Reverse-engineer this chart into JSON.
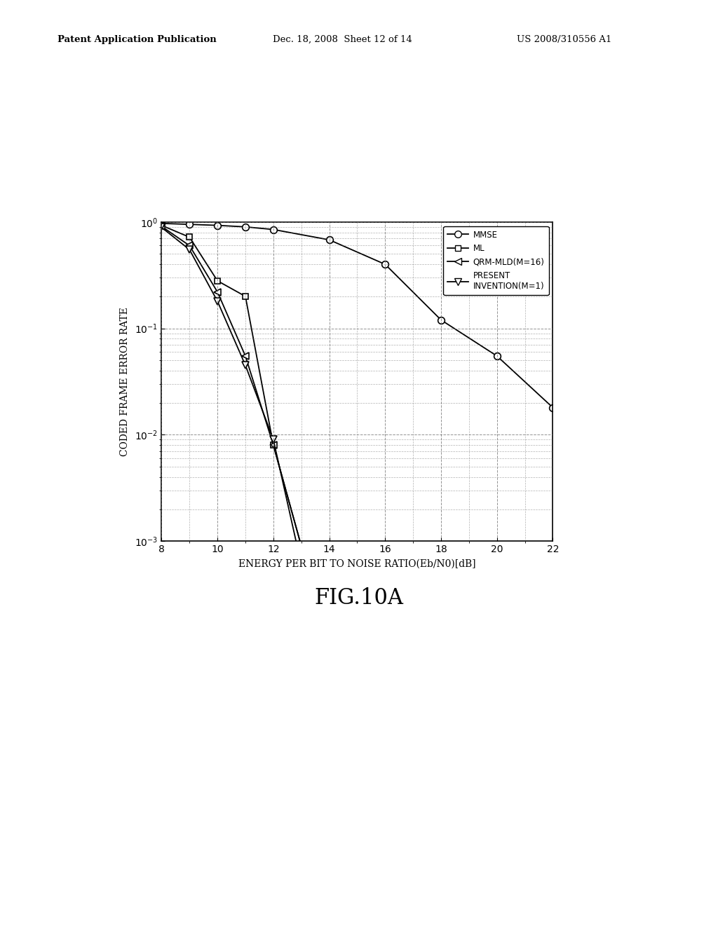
{
  "title": "FIG.10A",
  "xlabel": "ENERGY PER BIT TO NOISE RATIO(Eb/N0)[dB]",
  "ylabel": "CODED FRAME ERROR RATE",
  "xlim": [
    8,
    22
  ],
  "ylim_log": [
    -3,
    0
  ],
  "xticks": [
    8,
    10,
    12,
    14,
    16,
    18,
    20,
    22
  ],
  "header_line1": "Patent Application Publication",
  "header_line2": "Dec. 18, 2008  Sheet 12 of 14",
  "header_line3": "US 2008/310556 A1",
  "MMSE": {
    "x": [
      8,
      9,
      10,
      11,
      12,
      14,
      16,
      18,
      20,
      22
    ],
    "y": [
      0.97,
      0.95,
      0.93,
      0.9,
      0.85,
      0.68,
      0.4,
      0.12,
      0.055,
      0.018
    ]
  },
  "ML": {
    "x": [
      8,
      9,
      10,
      11,
      12,
      13
    ],
    "y": [
      0.93,
      0.72,
      0.28,
      0.2,
      0.008,
      0.0009
    ]
  },
  "QRM_MLD": {
    "x": [
      8,
      9,
      10,
      11,
      12,
      13
    ],
    "y": [
      0.91,
      0.6,
      0.22,
      0.055,
      0.008,
      0.0009
    ]
  },
  "PRESENT_INVENTION": {
    "x": [
      8,
      9,
      10,
      11,
      12,
      13
    ],
    "y": [
      0.89,
      0.55,
      0.18,
      0.045,
      0.009,
      0.0006
    ]
  },
  "line_color": "#000000",
  "background_color": "#ffffff",
  "grid_color": "#666666"
}
